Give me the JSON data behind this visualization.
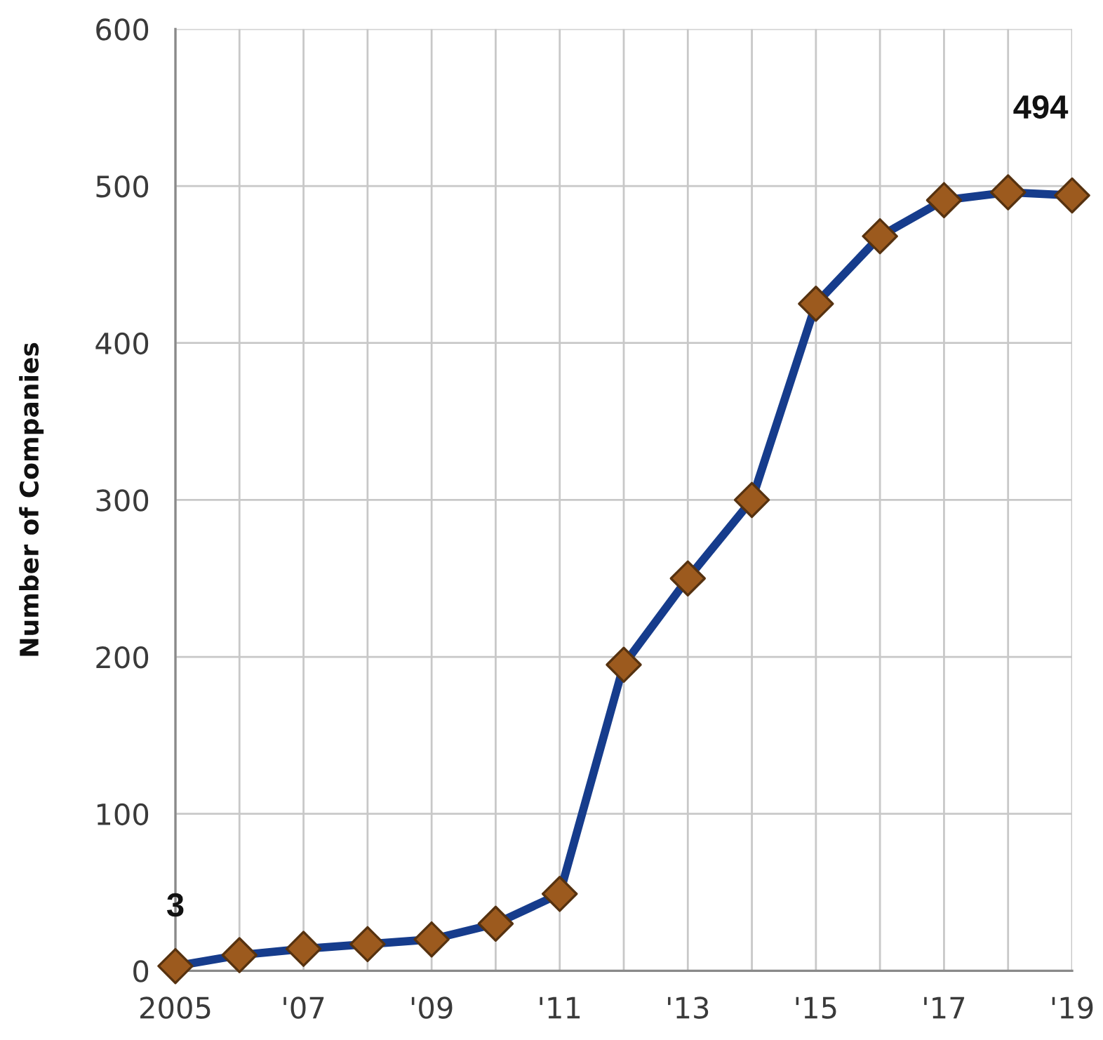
{
  "chart_data": {
    "type": "line",
    "ylabel": "Number of Companies",
    "categories": [
      "2005",
      null,
      "'07",
      null,
      "'09",
      null,
      "'11",
      null,
      "'13",
      null,
      "'15",
      null,
      "'17",
      null,
      "'19"
    ],
    "series": [
      {
        "color": "#163c8c",
        "colors": [
          "#9c5a1e",
          "#9c5a1e",
          "#9c5a1e",
          "#9c5a1e",
          "#9c5a1e",
          "#9c5a1e",
          "#9c5a1e",
          "#9c5a1e",
          "#9c5a1e",
          "#9c5a1e",
          "#9c5a1e",
          "#9c5a1e",
          "#9c5a1e",
          "#9c5a1e",
          "#9c5a1e"
        ],
        "values": [
          3,
          10,
          14,
          17,
          20,
          30,
          49,
          195,
          250,
          300,
          425,
          468,
          491,
          496,
          494
        ],
        "value_labels": [
          "3",
          null,
          null,
          null,
          null,
          null,
          null,
          null,
          null,
          null,
          null,
          null,
          null,
          null,
          "494"
        ]
      }
    ],
    "ylim": [
      0,
      600
    ],
    "yticks": [
      0,
      100,
      200,
      300,
      400,
      500,
      600
    ],
    "grid": true,
    "marker": "diamond",
    "line_style": "solid"
  }
}
